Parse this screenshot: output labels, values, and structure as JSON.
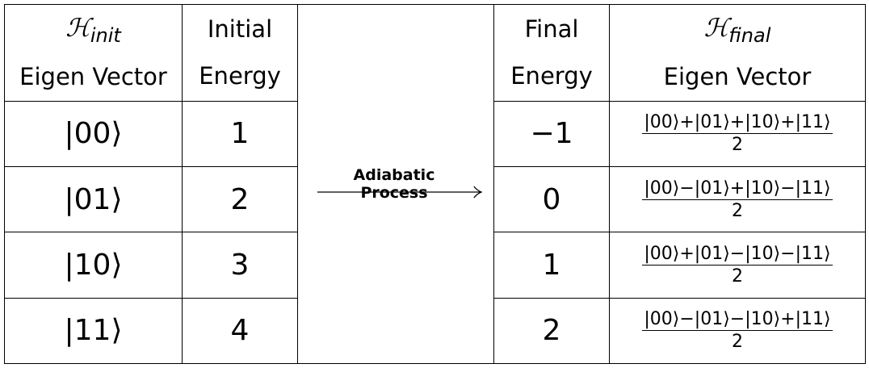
{
  "headers": {
    "init_symbol": "ℋ",
    "init_sub": "init",
    "init_eigen": "Eigen Vector",
    "initial_line1": "Initial",
    "initial_line2": "Energy",
    "final_line1": "Final",
    "final_line2": "Energy",
    "final_symbol": "ℋ",
    "final_sub": "final",
    "final_eigen": "Eigen Vector"
  },
  "process_label": "Adiabatic Process",
  "rows": [
    {
      "init_vec": "|00⟩",
      "init_energy": "1",
      "final_energy": "−1",
      "final_vec_num": "|00⟩+|01⟩+|10⟩+|11⟩",
      "final_vec_den": "2"
    },
    {
      "init_vec": "|01⟩",
      "init_energy": "2",
      "final_energy": "0",
      "final_vec_num": "|00⟩−|01⟩+|10⟩−|11⟩",
      "final_vec_den": "2"
    },
    {
      "init_vec": "|10⟩",
      "init_energy": "3",
      "final_energy": "1",
      "final_vec_num": "|00⟩+|01⟩−|10⟩−|11⟩",
      "final_vec_den": "2"
    },
    {
      "init_vec": "|11⟩",
      "init_energy": "4",
      "final_energy": "2",
      "final_vec_num": "|00⟩−|01⟩−|10⟩+|11⟩",
      "final_vec_den": "2"
    }
  ]
}
